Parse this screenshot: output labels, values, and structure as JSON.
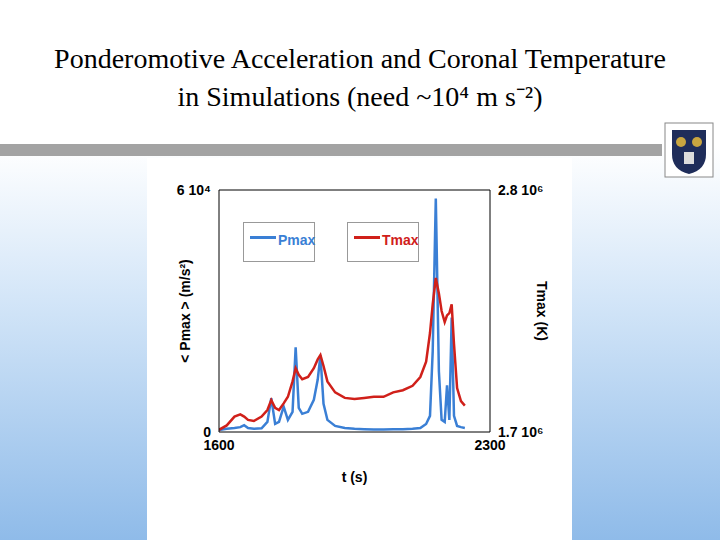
{
  "chart_data": {
    "type": "line",
    "title": "Ponderomotive Acceleration and Coronal Temperature in Simulations (need ~10⁴ m s⁻²)",
    "x_label": "t (s)",
    "y_label": "< Pmax > (m/s²)",
    "y2_label": "Tmax (K)",
    "x": [
      1600,
      1620,
      1640,
      1655,
      1665,
      1675,
      1690,
      1710,
      1725,
      1735,
      1745,
      1755,
      1767,
      1778,
      1790,
      1798,
      1806,
      1815,
      1830,
      1845,
      1855,
      1862,
      1870,
      1880,
      1900,
      1925,
      1950,
      1975,
      2000,
      2025,
      2050,
      2075,
      2100,
      2120,
      2135,
      2145,
      2152,
      2160,
      2168,
      2175,
      2183,
      2189,
      2195,
      2201,
      2207,
      2215,
      2225,
      2235
    ],
    "series": [
      {
        "name": "Pmax",
        "color": "#3a7fd5",
        "values": [
          500,
          800,
          1000,
          1200,
          1700,
          1000,
          800,
          900,
          2500,
          8400,
          2000,
          2500,
          6300,
          3000,
          5000,
          21000,
          6000,
          4500,
          5000,
          8000,
          13000,
          19000,
          7000,
          3000,
          1500,
          1000,
          800,
          700,
          600,
          600,
          700,
          700,
          800,
          1000,
          2000,
          4000,
          20000,
          57900,
          15000,
          3000,
          2500,
          11600,
          3000,
          28400,
          4000,
          1500,
          1200,
          1000
        ]
      },
      {
        "name": "Tmax",
        "color": "#d0201a",
        "axis": "y2",
        "values": [
          1710000,
          1730000,
          1770000,
          1780000,
          1770000,
          1755000,
          1750000,
          1770000,
          1800000,
          1845000,
          1810000,
          1800000,
          1830000,
          1860000,
          1930000,
          1990000,
          1960000,
          1940000,
          1950000,
          1990000,
          2030000,
          2050000,
          2000000,
          1930000,
          1880000,
          1855000,
          1850000,
          1855000,
          1860000,
          1860000,
          1880000,
          1890000,
          1910000,
          1950000,
          2020000,
          2150000,
          2280000,
          2400000,
          2330000,
          2250000,
          2200000,
          2230000,
          2240000,
          2280000,
          2100000,
          1900000,
          1840000,
          1820000
        ]
      }
    ],
    "xlim": [
      1600,
      2300
    ],
    "xticks": [
      1600,
      2300
    ],
    "ylim": [
      0,
      60000
    ],
    "yticks": [
      0,
      {
        "value": 60000,
        "label": "6 10⁴"
      }
    ],
    "y2lim": [
      1700000,
      2800000
    ],
    "y2ticks": [
      {
        "value": 1700000,
        "label": "1.7 10⁶"
      },
      {
        "value": 2800000,
        "label": "2.8 10⁶"
      }
    ],
    "legend": "upper left"
  }
}
